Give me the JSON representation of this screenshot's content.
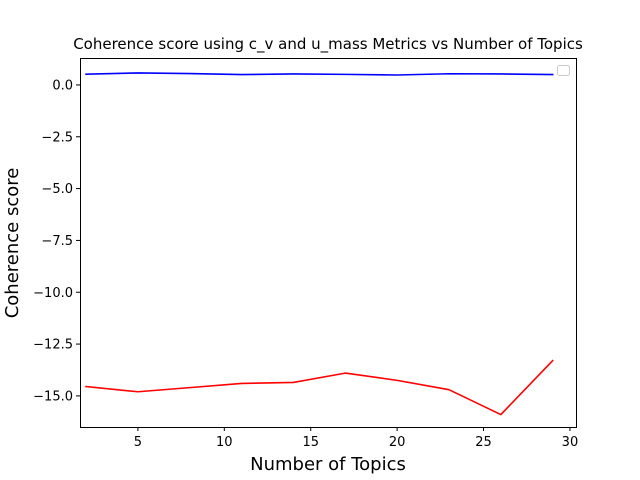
{
  "chart_data": {
    "type": "line",
    "title": "Coherence score using c_v and u_mass Metrics vs Number of Topics",
    "xlabel": "Number of Topics",
    "ylabel": "Coherence score",
    "xlim": [
      1.65,
      30.35
    ],
    "ylim": [
      -16.5,
      1.3
    ],
    "xticks": [
      5,
      10,
      15,
      20,
      25,
      30
    ],
    "yticks": [
      0.0,
      -2.5,
      -5.0,
      -7.5,
      -10.0,
      -12.5,
      -15.0
    ],
    "xtick_labels": [
      "5",
      "10",
      "15",
      "20",
      "25",
      "30"
    ],
    "ytick_labels": [
      "0.0",
      "−2.5",
      "−5.0",
      "−7.5",
      "−10.0",
      "−12.5",
      "−15.0"
    ],
    "grid": false,
    "legend": {
      "placement": "top-right",
      "entries": []
    },
    "x": [
      2,
      5,
      8,
      11,
      14,
      17,
      20,
      23,
      26,
      29
    ],
    "series": [
      {
        "color": "#0000ff",
        "values": [
          0.52,
          0.58,
          0.55,
          0.5,
          0.53,
          0.51,
          0.48,
          0.54,
          0.53,
          0.5
        ]
      },
      {
        "color": "#ff0000",
        "values": [
          -14.55,
          -14.8,
          -14.6,
          -14.4,
          -14.35,
          -13.9,
          -14.25,
          -14.7,
          -15.9,
          -13.3
        ]
      }
    ]
  }
}
